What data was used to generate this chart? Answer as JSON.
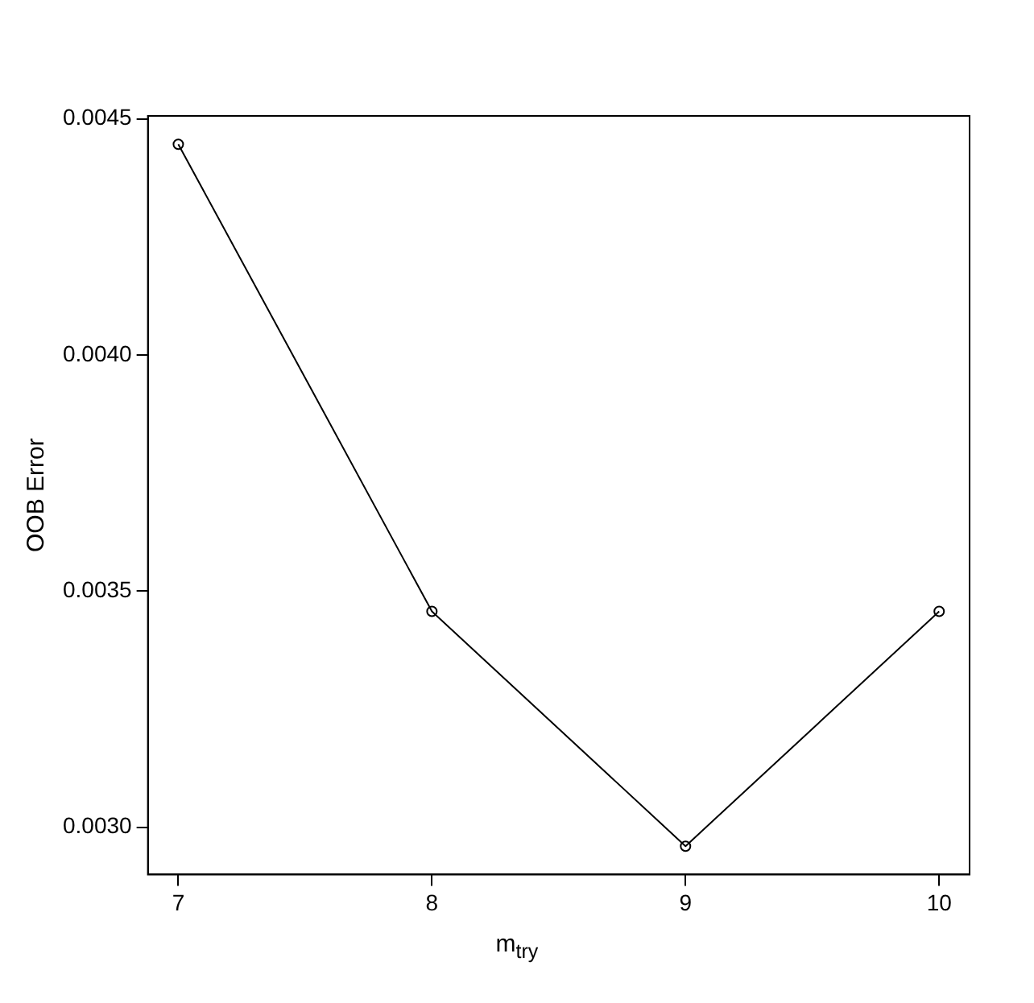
{
  "chart_data": {
    "type": "line",
    "xlabel": "m$_{try}$",
    "ylabel": "OOB Error",
    "x": [
      7,
      8,
      9,
      10
    ],
    "series": [
      {
        "color": "#000000",
        "values": [
          0.004446,
          0.003457,
          0.00296,
          0.003457
        ]
      }
    ],
    "xlim": [
      6.88,
      10.12
    ],
    "xticks": [
      7,
      8,
      9,
      10
    ],
    "ylim": [
      0.0029,
      0.004506
    ],
    "yticks": [
      {
        "value": 0.003,
        "label": "0.0030"
      },
      0.0035,
      {
        "value": 0.004,
        "label": "0.0040"
      },
      0.0045
    ],
    "grid": false,
    "legend": false,
    "marker": "circle",
    "line_style": "solid"
  }
}
